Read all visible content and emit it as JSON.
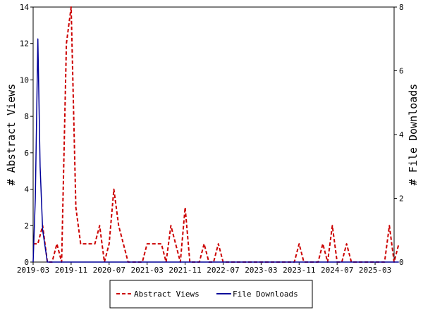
{
  "colors": {
    "abstract_views": "#cc0000",
    "file_downloads": "#000099",
    "axis": "#000000",
    "background": "#ffffff"
  },
  "chart_data": {
    "type": "line",
    "x_tick_labels": [
      "2019-03",
      "2019-11",
      "2020-07",
      "2021-03",
      "2021-11",
      "2022-07",
      "2023-03",
      "2023-11",
      "2024-07",
      "2025-03"
    ],
    "x_tick_dates": [
      "2019-03",
      "2019-11",
      "2020-07",
      "2021-03",
      "2021-11",
      "2022-07",
      "2023-03",
      "2023-11",
      "2024-07",
      "2025-03"
    ],
    "x_range": [
      "2019-03",
      "2025-07"
    ],
    "ylabel_left": "# Abstract Views",
    "ylabel_right": "# File Downloads",
    "ylim_left": [
      0,
      14
    ],
    "ylim_right": [
      0,
      8
    ],
    "yticks_left": [
      "0",
      "2",
      "4",
      "6",
      "8",
      "10",
      "12",
      "14"
    ],
    "yticks_right": [
      "0",
      "2",
      "4",
      "6",
      "8"
    ],
    "grid": false,
    "legend_position": "bottom-center",
    "series": [
      {
        "name": "Abstract Views",
        "axis": "left",
        "style": "dashed",
        "color": "#cc0000",
        "points": [
          [
            "2019-03",
            1
          ],
          [
            "2019-04",
            1
          ],
          [
            "2019-05",
            2
          ],
          [
            "2019-06",
            0
          ],
          [
            "2019-07",
            0
          ],
          [
            "2019-08",
            1
          ],
          [
            "2019-09",
            0
          ],
          [
            "2019-10",
            12
          ],
          [
            "2019-11",
            14
          ],
          [
            "2019-12",
            3
          ],
          [
            "2020-01",
            1
          ],
          [
            "2020-02",
            1
          ],
          [
            "2020-03",
            1
          ],
          [
            "2020-04",
            1
          ],
          [
            "2020-05",
            2
          ],
          [
            "2020-06",
            0
          ],
          [
            "2020-07",
            1
          ],
          [
            "2020-08",
            4
          ],
          [
            "2020-09",
            2
          ],
          [
            "2020-10",
            1
          ],
          [
            "2020-11",
            0
          ],
          [
            "2020-12",
            0
          ],
          [
            "2021-01",
            0
          ],
          [
            "2021-02",
            0
          ],
          [
            "2021-03",
            1
          ],
          [
            "2021-04",
            1
          ],
          [
            "2021-05",
            1
          ],
          [
            "2021-06",
            1
          ],
          [
            "2021-07",
            0
          ],
          [
            "2021-08",
            2
          ],
          [
            "2021-09",
            1
          ],
          [
            "2021-10",
            0
          ],
          [
            "2021-11",
            3
          ],
          [
            "2021-12",
            0
          ],
          [
            "2022-01",
            0
          ],
          [
            "2022-02",
            0
          ],
          [
            "2022-03",
            1
          ],
          [
            "2022-04",
            0
          ],
          [
            "2022-05",
            0
          ],
          [
            "2022-06",
            1
          ],
          [
            "2022-07",
            0
          ],
          [
            "2022-08",
            0
          ],
          [
            "2022-09",
            0
          ],
          [
            "2022-10",
            0
          ],
          [
            "2022-11",
            0
          ],
          [
            "2022-12",
            0
          ],
          [
            "2023-01",
            0
          ],
          [
            "2023-02",
            0
          ],
          [
            "2023-03",
            0
          ],
          [
            "2023-04",
            0
          ],
          [
            "2023-05",
            0
          ],
          [
            "2023-06",
            0
          ],
          [
            "2023-07",
            0
          ],
          [
            "2023-08",
            0
          ],
          [
            "2023-09",
            0
          ],
          [
            "2023-10",
            0
          ],
          [
            "2023-11",
            1
          ],
          [
            "2023-12",
            0
          ],
          [
            "2024-01",
            0
          ],
          [
            "2024-02",
            0
          ],
          [
            "2024-03",
            0
          ],
          [
            "2024-04",
            1
          ],
          [
            "2024-05",
            0
          ],
          [
            "2024-06",
            2
          ],
          [
            "2024-07",
            0
          ],
          [
            "2024-08",
            0
          ],
          [
            "2024-09",
            1
          ],
          [
            "2024-10",
            0
          ],
          [
            "2024-11",
            0
          ],
          [
            "2024-12",
            0
          ],
          [
            "2025-01",
            0
          ],
          [
            "2025-02",
            0
          ],
          [
            "2025-03",
            0
          ],
          [
            "2025-04",
            0
          ],
          [
            "2025-05",
            0
          ],
          [
            "2025-06",
            2
          ],
          [
            "2025-07",
            0
          ],
          [
            "2025-08",
            1
          ]
        ]
      },
      {
        "name": "File Downloads",
        "axis": "right",
        "style": "solid",
        "color": "#000099",
        "points": [
          [
            "2019-03",
            0
          ],
          [
            "2019-03-15",
            2
          ],
          [
            "2019-04",
            7
          ],
          [
            "2019-04-15",
            3
          ],
          [
            "2019-05",
            1
          ],
          [
            "2019-06",
            0
          ],
          [
            "2019-07",
            0
          ],
          [
            "2019-08",
            0
          ],
          [
            "2019-09",
            0
          ],
          [
            "2019-10",
            0
          ],
          [
            "2019-11",
            0
          ],
          [
            "2020-03",
            0
          ],
          [
            "2020-07",
            0
          ],
          [
            "2020-11",
            0
          ],
          [
            "2021-03",
            0
          ],
          [
            "2021-07",
            0
          ],
          [
            "2021-11",
            0
          ],
          [
            "2022-03",
            0
          ],
          [
            "2022-07",
            0
          ],
          [
            "2022-11",
            0
          ],
          [
            "2023-03",
            0
          ],
          [
            "2023-07",
            0
          ],
          [
            "2023-11",
            0
          ],
          [
            "2024-03",
            0
          ],
          [
            "2024-07",
            0
          ],
          [
            "2024-11",
            0
          ],
          [
            "2025-03",
            0
          ],
          [
            "2025-08",
            0
          ]
        ]
      }
    ]
  }
}
